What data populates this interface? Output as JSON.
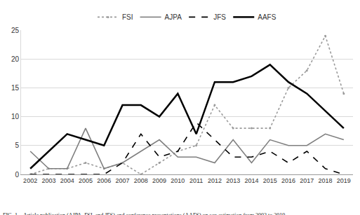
{
  "chart_data": {
    "type": "line",
    "caption": "FIG. 1—Article publication (AJPA, FSI, and JFS) and conference presentations (AAFS) on sex estimation from 2002 to 2019.",
    "categories": [
      "2002",
      "2003",
      "2004",
      "2005",
      "2006",
      "2007",
      "2008",
      "2009",
      "2010",
      "2011",
      "2012",
      "2013",
      "2014",
      "2015",
      "2016",
      "2017",
      "2018",
      "2019"
    ],
    "series": [
      {
        "name": "FSI",
        "color": "#9a9a9a",
        "line_style": "dot",
        "marker": "circle",
        "values": [
          0,
          1,
          1,
          2,
          1,
          2,
          0,
          2,
          4,
          5,
          12,
          8,
          8,
          8,
          15,
          18,
          24,
          14
        ]
      },
      {
        "name": "AJPA",
        "color": "#7f7f7f",
        "line_style": "solid",
        "values": [
          4,
          1,
          1,
          8,
          1,
          2,
          4,
          6,
          3,
          3,
          2,
          6,
          2,
          6,
          5,
          5,
          7,
          6
        ]
      },
      {
        "name": "JFS",
        "color": "#000000",
        "line_style": "dash",
        "values": [
          0,
          0,
          0,
          0,
          0,
          2,
          7,
          3,
          4,
          9,
          6,
          3,
          3,
          4,
          2,
          4,
          1,
          0
        ]
      },
      {
        "name": "AAFS",
        "color": "#000000",
        "line_style": "solid",
        "values": [
          1,
          4,
          7,
          6,
          5,
          12,
          12,
          10,
          14,
          7,
          16,
          16,
          17,
          19,
          16,
          14,
          11,
          8
        ]
      }
    ],
    "ylim": [
      0,
      25
    ],
    "yticks": [
      0,
      5,
      10,
      15,
      20,
      25
    ],
    "grid": true,
    "legend": "top"
  }
}
